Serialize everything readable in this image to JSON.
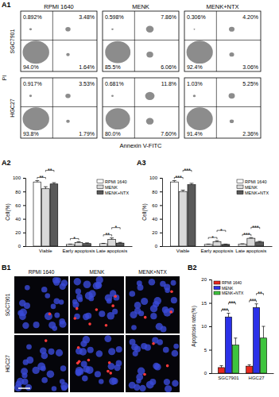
{
  "chart_data": [
    {
      "type": "quadrant",
      "panel_label": "A1",
      "columns": [
        "RPMI 1640",
        "MENK",
        "MENK+NTX"
      ],
      "rows": [
        "SGC7901",
        "HGC27"
      ],
      "x_label": "Annexin V-FITC",
      "y_label": "PI",
      "panels": [
        [
          {
            "values": [
              0.892,
              3.48,
              94.0,
              1.64
            ],
            "value_labels": [
              "0.892%",
              "3.48%",
              "94.0%",
              "1.64%"
            ]
          },
          {
            "values": [
              0.598,
              7.86,
              85.5,
              6.06
            ],
            "value_labels": [
              "0.598%",
              "7.86%",
              "85.5%",
              "6.06%"
            ]
          },
          {
            "values": [
              0.306,
              4.2,
              92.4,
              3.06
            ],
            "value_labels": [
              "0.306%",
              "4.20%",
              "92.4%",
              "3.06%"
            ]
          }
        ],
        [
          {
            "values": [
              0.917,
              3.53,
              93.8,
              1.79
            ],
            "value_labels": [
              "0.917%",
              "3.53%",
              "93.8%",
              "1.79%"
            ]
          },
          {
            "values": [
              0.681,
              11.8,
              80.0,
              7.6
            ],
            "value_labels": [
              "0.681%",
              "11.8%",
              "80.0%",
              "7.60%"
            ]
          },
          {
            "values": [
              1.03,
              5.25,
              91.4,
              2.36
            ],
            "value_labels": [
              "1.03%",
              "5.25%",
              "91.4%",
              "2.36%"
            ]
          }
        ]
      ]
    },
    {
      "type": "bar",
      "panel_label": "A2",
      "ylabel": "Cell(%)",
      "categories": [
        "Viable",
        "Early apoptosis",
        "Late apoptosis"
      ],
      "series": [
        {
          "name": "RPMI 1640",
          "color": "#ffffff",
          "values": [
            94,
            2.5,
            3.5
          ],
          "errors": [
            2,
            0.5,
            0.5
          ]
        },
        {
          "name": "MENK",
          "color": "#d9d9d9",
          "values": [
            84,
            5.5,
            10
          ],
          "errors": [
            3,
            1,
            2
          ]
        },
        {
          "name": "MENK+NTX",
          "color": "#595959",
          "values": [
            91,
            3.8,
            4.5
          ],
          "errors": [
            2,
            1,
            1
          ]
        }
      ],
      "ylim": [
        0,
        100
      ],
      "yticks": [
        0,
        20,
        40,
        60,
        80,
        100
      ],
      "legend": "upper right",
      "annotations": [
        {
          "text": "**",
          "category": 0,
          "pair": [
            0,
            1
          ]
        },
        {
          "text": "**",
          "category": 0,
          "pair": [
            1,
            2
          ]
        },
        {
          "text": "*",
          "category": 1,
          "pair": [
            0,
            1
          ]
        },
        {
          "text": "**",
          "category": 2,
          "pair": [
            0,
            1
          ]
        },
        {
          "text": "*",
          "category": 2,
          "pair": [
            1,
            2
          ]
        }
      ]
    },
    {
      "type": "bar",
      "panel_label": "A3",
      "ylabel": "Cell(%)",
      "categories": [
        "Viable",
        "Early apoptosis",
        "Late apoptosis"
      ],
      "series": [
        {
          "name": "RPMI 1640",
          "color": "#ffffff",
          "values": [
            94,
            2.5,
            3
          ],
          "errors": [
            2,
            0.5,
            0.5
          ]
        },
        {
          "name": "MENK",
          "color": "#d9d9d9",
          "values": [
            80,
            6.5,
            11.5
          ],
          "errors": [
            2,
            1.5,
            1
          ]
        },
        {
          "name": "MENK+NTX",
          "color": "#595959",
          "values": [
            90,
            2.5,
            6
          ],
          "errors": [
            2,
            0.5,
            1
          ]
        }
      ],
      "ylim": [
        0,
        100
      ],
      "yticks": [
        0,
        20,
        40,
        60,
        80,
        100
      ],
      "legend": "upper right",
      "annotations": [
        {
          "text": "***",
          "category": 0,
          "pair": [
            0,
            1
          ]
        },
        {
          "text": "***",
          "category": 0,
          "pair": [
            1,
            2
          ]
        },
        {
          "text": "*",
          "category": 1,
          "pair": [
            0,
            1
          ]
        },
        {
          "text": "*",
          "category": 1,
          "pair": [
            1,
            2
          ]
        },
        {
          "text": "***",
          "category": 2,
          "pair": [
            0,
            1
          ]
        },
        {
          "text": "***",
          "category": 2,
          "pair": [
            1,
            2
          ]
        }
      ]
    },
    {
      "type": "image",
      "panel_label": "B1",
      "columns": [
        "RPMI 1640",
        "MENK",
        "MENK+NTX"
      ],
      "rows": [
        "SGC7901",
        "HGC27"
      ]
    },
    {
      "type": "bar",
      "panel_label": "B2",
      "ylabel": "Apoptosis rate(%)",
      "categories": [
        "SGC7901",
        "HGC27"
      ],
      "series": [
        {
          "name": "RPMI 1640",
          "color": "#e8281e",
          "values": [
            1.2,
            1.5
          ],
          "errors": [
            0.4,
            0.3
          ]
        },
        {
          "name": "MENK",
          "color": "#2b31e8",
          "values": [
            12,
            14
          ],
          "errors": [
            0.8,
            0.8
          ]
        },
        {
          "name": "MENK+NTX",
          "color": "#3ec43e",
          "values": [
            6,
            7.5
          ],
          "errors": [
            1.5,
            2.5
          ]
        }
      ],
      "ylim": [
        0,
        20
      ],
      "yticks": [
        0,
        5,
        10,
        15,
        20
      ],
      "legend": "upper left",
      "annotations": [
        {
          "text": "***",
          "category": 0,
          "pair": [
            0,
            1
          ]
        },
        {
          "text": "***",
          "category": 0,
          "pair": [
            1,
            2
          ]
        },
        {
          "text": "***",
          "category": 1,
          "pair": [
            0,
            1
          ]
        },
        {
          "text": "**",
          "category": 1,
          "pair": [
            1,
            2
          ]
        }
      ]
    }
  ]
}
